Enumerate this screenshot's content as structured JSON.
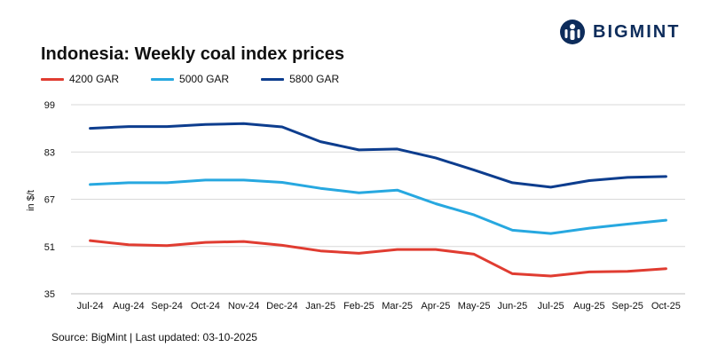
{
  "brand": {
    "name": "BIGMINT",
    "icon": "bigmint-logo-icon",
    "color": "#0d2c5b"
  },
  "chart_data": {
    "type": "line",
    "title": "Indonesia: Weekly coal index prices",
    "ylabel": "in $/t",
    "xlabel": "",
    "categories": [
      "Jul-24",
      "Aug-24",
      "Sep-24",
      "Oct-24",
      "Nov-24",
      "Dec-24",
      "Jan-25",
      "Feb-25",
      "Mar-25",
      "Apr-25",
      "May-25",
      "Jun-25",
      "Jul-25",
      "Aug-25",
      "Sep-25",
      "Oct-25"
    ],
    "yticks": [
      35,
      51,
      67,
      83,
      99
    ],
    "ylim": [
      35,
      99
    ],
    "grid": true,
    "legend_position": "top-left",
    "series": [
      {
        "name": "4200 GAR",
        "color": "#e03c31",
        "values": [
          53.0,
          51.6,
          51.3,
          52.4,
          52.7,
          51.4,
          49.5,
          48.7,
          50.0,
          50.0,
          48.4,
          41.8,
          41.0,
          42.4,
          42.6,
          43.5
        ]
      },
      {
        "name": "5000 GAR",
        "color": "#27a8e0",
        "values": [
          72.0,
          72.6,
          72.6,
          73.5,
          73.5,
          72.7,
          70.7,
          69.2,
          70.1,
          65.5,
          61.7,
          56.5,
          55.4,
          57.2,
          58.6,
          59.9
        ]
      },
      {
        "name": "5800 GAR",
        "color": "#0d3d8e",
        "values": [
          91.0,
          91.6,
          91.6,
          92.3,
          92.6,
          91.5,
          86.5,
          83.7,
          84.0,
          81.0,
          76.9,
          72.6,
          71.1,
          73.3,
          74.4,
          74.7
        ]
      }
    ]
  },
  "footer": {
    "source": "Source: BigMint | Last updated: 03-10-2025"
  }
}
